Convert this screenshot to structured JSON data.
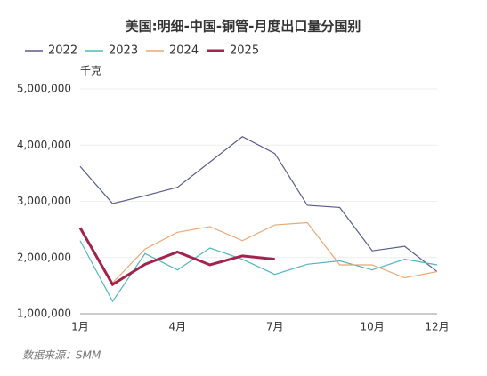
{
  "chart_data": {
    "type": "line",
    "title": "美国:明细-中国-铜管-月度出口量分国别",
    "y_label": "千克",
    "source": "数据来源：SMM",
    "categories": [
      "1月",
      null,
      null,
      "4月",
      null,
      null,
      "7月",
      null,
      null,
      "10月",
      null,
      "12月"
    ],
    "series": [
      {
        "name": "2022",
        "color": "#5a5d8c",
        "values": [
          3620000,
          2960000,
          3100000,
          3250000,
          3700000,
          4150000,
          3850000,
          2930000,
          2890000,
          2120000,
          2200000,
          1750000
        ]
      },
      {
        "name": "2023",
        "color": "#52b6c2",
        "values": [
          2300000,
          1220000,
          2070000,
          1780000,
          2170000,
          1970000,
          1700000,
          1880000,
          1940000,
          1780000,
          1970000,
          1870000
        ]
      },
      {
        "name": "2024",
        "color": "#e9a974",
        "values": [
          2500000,
          1550000,
          2150000,
          2450000,
          2550000,
          2300000,
          2580000,
          2620000,
          1870000,
          1870000,
          1640000,
          1750000
        ]
      },
      {
        "name": "2025",
        "color": "#a3234d",
        "values": [
          2530000,
          1520000,
          1880000,
          2100000,
          1870000,
          2030000,
          1970000,
          null,
          null,
          null,
          null,
          null
        ]
      }
    ],
    "ylim": [
      1000000,
      5000000
    ],
    "yticks": [
      {
        "value": 1000000,
        "label": "1,000,000"
      },
      {
        "value": 2000000,
        "label": "2,000,000"
      },
      {
        "value": 3000000,
        "label": "3,000,000"
      },
      {
        "value": 4000000,
        "label": "4,000,000"
      },
      {
        "value": 5000000,
        "label": "5,000,000"
      }
    ],
    "grid": true
  }
}
